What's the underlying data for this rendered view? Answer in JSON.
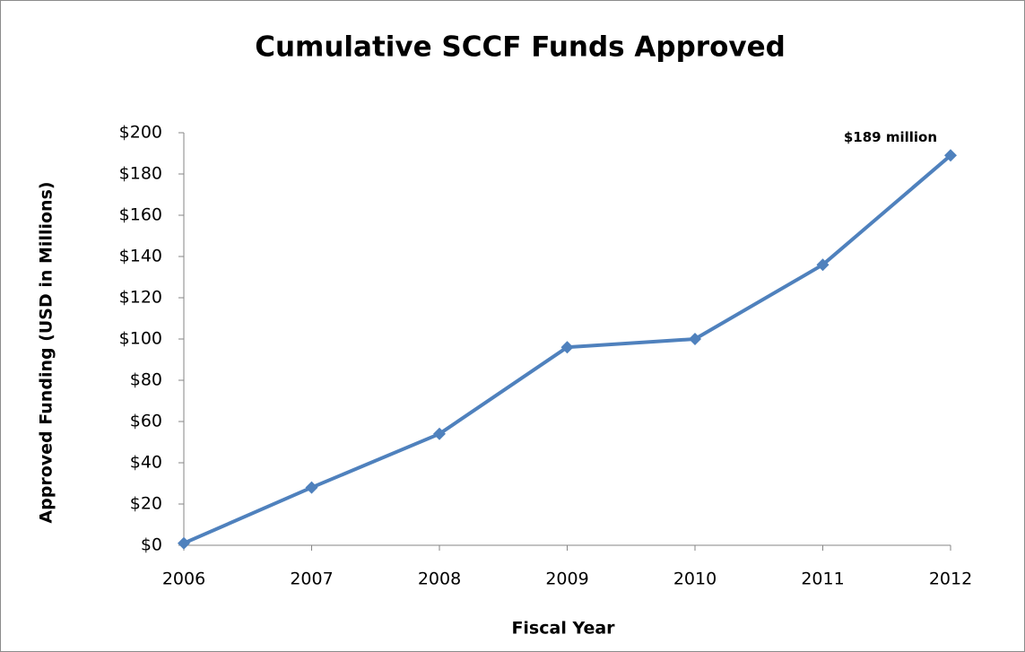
{
  "chart_data": {
    "type": "line",
    "title": "Cumulative SCCF Funds Approved",
    "x_label": "Fiscal Year",
    "y_label": "Approved Funding (USD in Millions)",
    "categories": [
      "2006",
      "2007",
      "2008",
      "2009",
      "2010",
      "2011",
      "2012"
    ],
    "series": [
      {
        "name": "Cumulative SCCF Funds Approved",
        "color": "#4f81bd",
        "values": [
          1,
          28,
          54,
          96,
          100,
          136,
          189
        ],
        "value_labels": [
          null,
          null,
          null,
          null,
          null,
          null,
          "$189 million"
        ]
      }
    ],
    "ylim": [
      0,
      200
    ],
    "yticks": [
      {
        "value": 0,
        "label": "$0"
      },
      {
        "value": 20,
        "label": "$20"
      },
      {
        "value": 40,
        "label": "$40"
      },
      {
        "value": 60,
        "label": "$60"
      },
      {
        "value": 80,
        "label": "$80"
      },
      {
        "value": 100,
        "label": "$100"
      },
      {
        "value": 120,
        "label": "$120"
      },
      {
        "value": 140,
        "label": "$140"
      },
      {
        "value": 160,
        "label": "$160"
      },
      {
        "value": 180,
        "label": "$180"
      },
      {
        "value": 200,
        "label": "$200"
      }
    ],
    "grid": false
  }
}
